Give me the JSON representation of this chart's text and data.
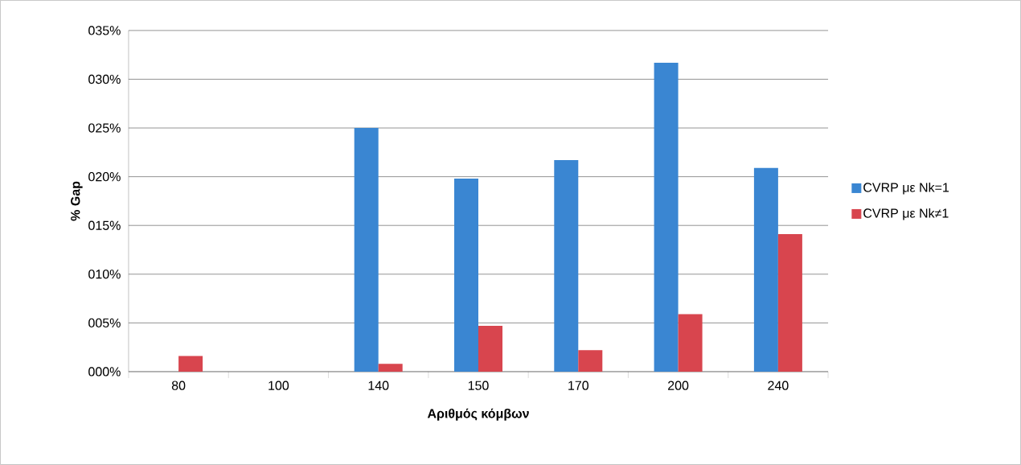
{
  "chart_data": {
    "type": "bar",
    "xlabel": "Αριθμός κόμβων",
    "ylabel": "% Gap",
    "categories": [
      "80",
      "100",
      "140",
      "150",
      "170",
      "200",
      "240"
    ],
    "series": [
      {
        "name": "CVRP με Nk=1",
        "color": "#3a86d2",
        "values": [
          0,
          0,
          25.0,
          19.8,
          21.7,
          31.7,
          20.9
        ]
      },
      {
        "name": "CVRP με Nk≠1",
        "color": "#d8454e",
        "values": [
          1.6,
          0,
          0.8,
          4.7,
          2.2,
          5.9,
          14.1
        ]
      }
    ],
    "ylim": [
      0,
      35
    ],
    "yticks": [
      {
        "value": 0,
        "label": "000%"
      },
      {
        "value": 5,
        "label": "005%"
      },
      {
        "value": 10,
        "label": "010%"
      },
      {
        "value": 15,
        "label": "015%"
      },
      {
        "value": 20,
        "label": "020%"
      },
      {
        "value": 25,
        "label": "025%"
      },
      {
        "value": 30,
        "label": "030%"
      },
      {
        "value": 35,
        "label": "035%"
      }
    ],
    "grid": "y",
    "legend": "right"
  }
}
